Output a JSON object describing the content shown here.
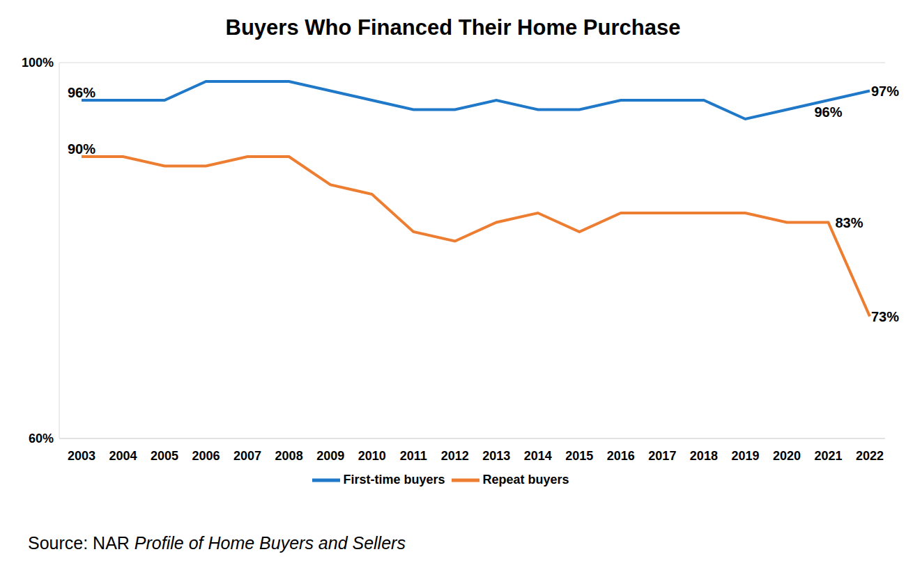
{
  "chart_data": {
    "type": "line",
    "title": "Buyers Who Financed Their Home Purchase",
    "categories": [
      "2003",
      "2004",
      "2005",
      "2006",
      "2007",
      "2008",
      "2009",
      "2010",
      "2011",
      "2012",
      "2013",
      "2014",
      "2015",
      "2016",
      "2017",
      "2018",
      "2019",
      "2020",
      "2021",
      "2022"
    ],
    "series": [
      {
        "name": "First-time buyers",
        "color": "#1f78c8",
        "values": [
          96,
          96,
          96,
          98,
          98,
          98,
          97,
          96,
          95,
          95,
          96,
          95,
          95,
          96,
          96,
          96,
          94,
          95,
          96,
          97
        ],
        "value_labels": [
          "96%",
          null,
          null,
          null,
          null,
          null,
          null,
          null,
          null,
          null,
          null,
          null,
          null,
          null,
          null,
          null,
          null,
          null,
          "96%",
          "97%"
        ]
      },
      {
        "name": "Repeat buyers",
        "color": "#ed7d31",
        "values": [
          90,
          90,
          89,
          89,
          90,
          90,
          87,
          86,
          82,
          81,
          83,
          84,
          82,
          84,
          84,
          84,
          84,
          83,
          83,
          73
        ],
        "value_labels": [
          "90%",
          null,
          null,
          null,
          null,
          null,
          null,
          null,
          null,
          null,
          null,
          null,
          null,
          null,
          null,
          null,
          null,
          null,
          "83%",
          "73%"
        ]
      }
    ],
    "ylim": [
      60,
      100
    ],
    "yticks": [
      {
        "value": 60,
        "label": "60%"
      },
      {
        "value": 100,
        "label": "100%"
      }
    ],
    "grid": true,
    "legend": "bottom",
    "data_labels": true,
    "source": [
      "Source: NAR ",
      "Profile of Home Buyers and Sellers"
    ]
  }
}
